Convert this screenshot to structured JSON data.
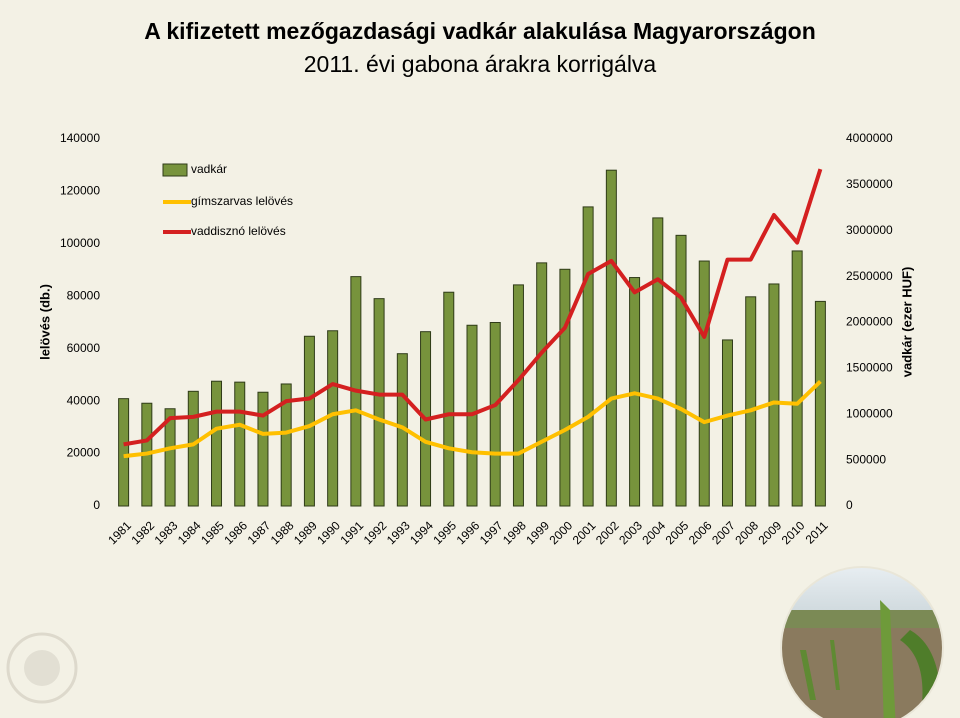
{
  "chart_data": {
    "type": "bar",
    "title": "A kifizetett mezőgazdasági vadkár alakulása Magyarországon",
    "subtitle": "2011. évi gabona árakra korrigálva",
    "ylabel": "lelövés (db.)",
    "y2label": "vadkár (ezer HUF)",
    "categories": [
      "1981",
      "1982",
      "1983",
      "1984",
      "1985",
      "1986",
      "1987",
      "1988",
      "1989",
      "1990",
      "1991",
      "1992",
      "1993",
      "1994",
      "1995",
      "1996",
      "1997",
      "1998",
      "1999",
      "2000",
      "2001",
      "2002",
      "2003",
      "2004",
      "2005",
      "2006",
      "2007",
      "2008",
      "2009",
      "2010",
      "2011"
    ],
    "series": [
      {
        "name": "vadkár",
        "type": "bar",
        "axis": "y2",
        "color": "#77933c",
        "values": [
          1170000,
          1120000,
          1060000,
          1250000,
          1360000,
          1350000,
          1240000,
          1330000,
          1850000,
          1910000,
          2500000,
          2260000,
          1660000,
          1900000,
          2330000,
          1970000,
          2000000,
          2410000,
          2650000,
          2580000,
          3260000,
          3660000,
          2490000,
          3140000,
          2950000,
          2670000,
          1810000,
          2280000,
          2420000,
          2780000,
          2230000
        ]
      },
      {
        "name": "gímszarvas lelövés",
        "type": "line",
        "color": "#ffc000",
        "values": [
          19000,
          20000,
          22000,
          23500,
          29500,
          31000,
          27500,
          28000,
          30500,
          35000,
          36500,
          33000,
          30000,
          24500,
          22000,
          20500,
          20000,
          20000,
          24500,
          29000,
          34000,
          41000,
          43000,
          41000,
          37000,
          32000,
          34500,
          36500,
          39500,
          39000,
          47500
        ]
      },
      {
        "name": "vaddisznó lelövés",
        "type": "line",
        "color": "#d42020",
        "values": [
          23500,
          25000,
          33500,
          34000,
          36000,
          36000,
          34500,
          40000,
          41000,
          46500,
          44000,
          42500,
          42500,
          33000,
          35000,
          35000,
          38500,
          48000,
          58500,
          68000,
          88500,
          93500,
          81500,
          86500,
          79500,
          64500,
          94000,
          94000,
          111000,
          100500,
          128500
        ]
      }
    ],
    "ylim": [
      0,
      140000
    ],
    "yticks": [
      0,
      20000,
      40000,
      60000,
      80000,
      100000,
      120000,
      140000
    ],
    "y2lim": [
      0,
      4000000
    ],
    "y2ticks": [
      0,
      500000,
      1000000,
      1500000,
      2000000,
      2500000,
      3000000,
      3500000,
      4000000
    ],
    "grid": false,
    "legend": "top-left"
  }
}
